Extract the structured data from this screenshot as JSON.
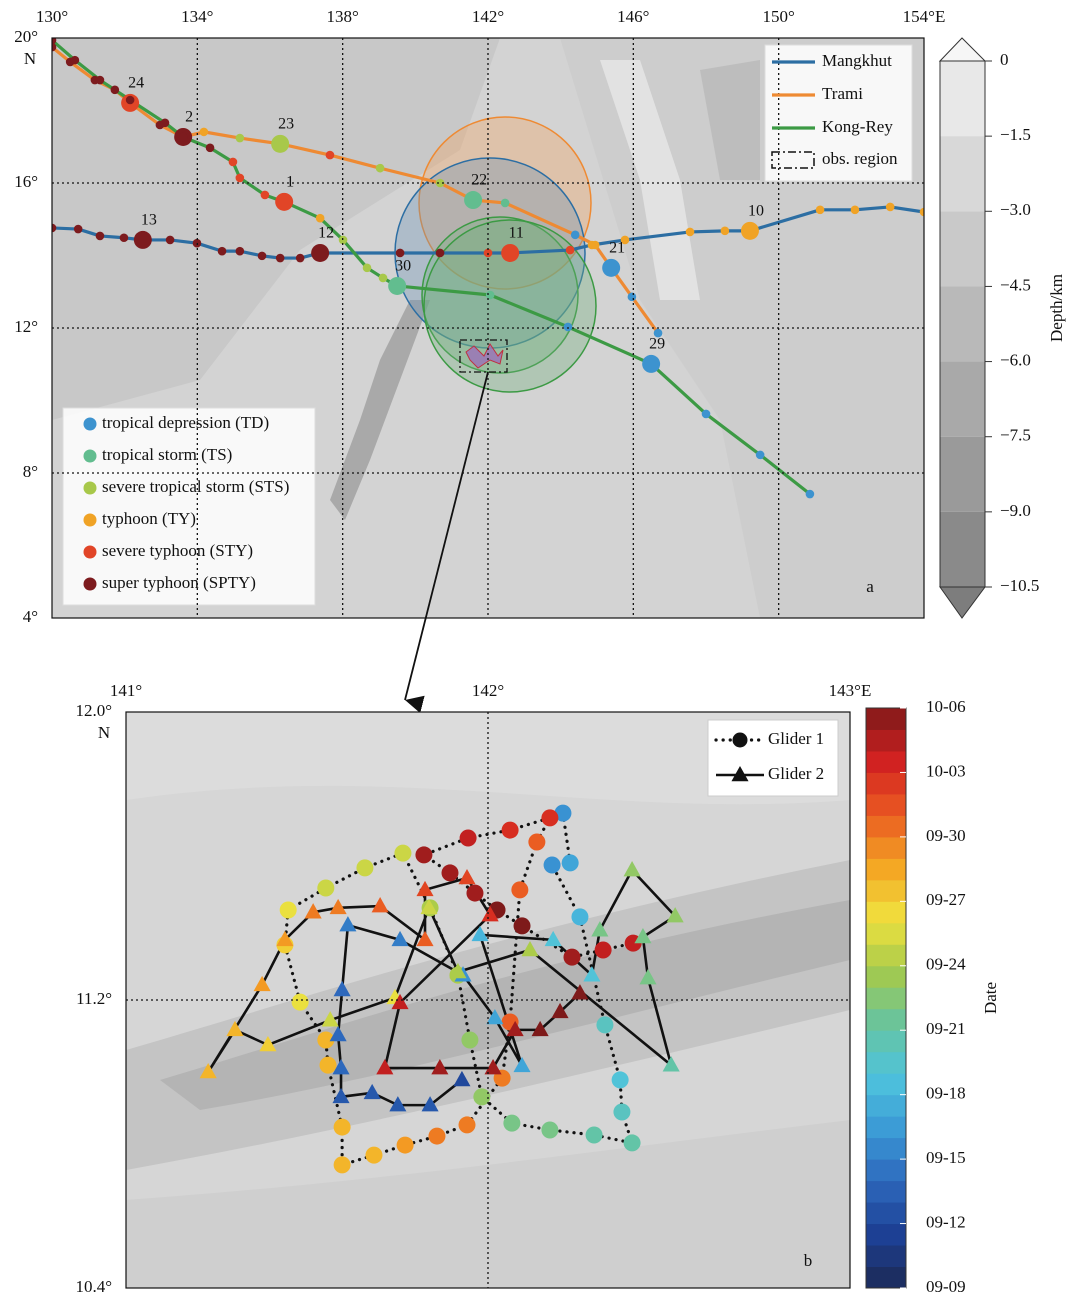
{
  "panel_a": {
    "label": "a",
    "xlim": [
      130,
      154
    ],
    "ylim": [
      4,
      20
    ],
    "xticks": [
      {
        "value": 130,
        "label": "130°"
      },
      {
        "value": 134,
        "label": "134°"
      },
      {
        "value": 138,
        "label": "138°"
      },
      {
        "value": 142,
        "label": "142°"
      },
      {
        "value": 146,
        "label": "146°"
      },
      {
        "value": 150,
        "label": "150°"
      },
      {
        "value": 154,
        "label": "154°E"
      }
    ],
    "yticks": [
      {
        "value": 20,
        "label": "20°"
      },
      {
        "value": 16,
        "label": "16°"
      },
      {
        "value": 12,
        "label": "12°"
      },
      {
        "value": 8,
        "label": "8°"
      },
      {
        "value": 4,
        "label": "4°"
      }
    ],
    "hemisphere": "N",
    "grid": true,
    "categories": [
      {
        "name": "tropical depression (TD)",
        "color": "#3d93cf"
      },
      {
        "name": "tropical storm (TS)",
        "color": "#62bd8f"
      },
      {
        "name": "severe tropical storm (STS)",
        "color": "#a8c84a"
      },
      {
        "name": "typhoon (TY)",
        "color": "#f0a326"
      },
      {
        "name": "severe typhoon (STY)",
        "color": "#e14527"
      },
      {
        "name": "super typhoon (SPTY)",
        "color": "#7d1b1e"
      }
    ],
    "tracks": [
      {
        "name": "Mangkhut",
        "color": "#2c6ea3",
        "points": [
          [
            154.0,
            15.2,
            3
          ],
          [
            153.07,
            15.34,
            3
          ],
          [
            152.1,
            15.26,
            3
          ],
          [
            151.14,
            15.26,
            3
          ],
          [
            149.21,
            14.68,
            3,
            "10"
          ],
          [
            148.52,
            14.68,
            3
          ],
          [
            147.56,
            14.65,
            3
          ],
          [
            145.77,
            14.43,
            3
          ],
          [
            144.86,
            14.29,
            3
          ],
          [
            144.26,
            14.15,
            4
          ],
          [
            142.61,
            14.07,
            4,
            "11"
          ],
          [
            142.0,
            14.07,
            4
          ],
          [
            140.68,
            14.07,
            5
          ],
          [
            139.58,
            14.07,
            5
          ],
          [
            137.38,
            14.07,
            5,
            "12"
          ],
          [
            136.83,
            13.93,
            5
          ],
          [
            136.28,
            13.93,
            5
          ],
          [
            135.78,
            13.99,
            5
          ],
          [
            135.17,
            14.12,
            5
          ],
          [
            134.68,
            14.12,
            5
          ],
          [
            133.99,
            14.34,
            5
          ],
          [
            133.25,
            14.43,
            5
          ],
          [
            132.5,
            14.43,
            5,
            "13"
          ],
          [
            131.98,
            14.49,
            5
          ],
          [
            131.32,
            14.54,
            5
          ],
          [
            130.72,
            14.73,
            5
          ],
          [
            130.0,
            14.76,
            5
          ]
        ]
      },
      {
        "name": "Trami",
        "color": "#ee8a33",
        "points": [
          [
            146.68,
            11.86,
            0
          ],
          [
            145.96,
            12.86,
            0
          ],
          [
            145.39,
            13.66,
            0,
            "21"
          ],
          [
            144.95,
            14.29,
            3
          ],
          [
            144.4,
            14.57,
            0
          ],
          [
            142.47,
            15.45,
            1
          ],
          [
            141.59,
            15.53,
            1,
            "22"
          ],
          [
            140.68,
            16.0,
            2
          ],
          [
            139.03,
            16.41,
            2
          ],
          [
            137.65,
            16.77,
            4
          ],
          [
            136.28,
            17.08,
            2,
            "23"
          ],
          [
            135.17,
            17.24,
            2
          ],
          [
            134.18,
            17.41,
            3
          ],
          [
            133.61,
            17.27,
            5,
            "2"
          ],
          [
            132.97,
            17.6,
            5
          ],
          [
            132.15,
            18.21,
            4,
            "24"
          ],
          [
            131.73,
            18.57,
            5
          ],
          [
            131.18,
            18.84,
            5
          ],
          [
            130.5,
            19.34,
            5
          ],
          [
            130.0,
            19.75,
            5
          ]
        ]
      },
      {
        "name": "Kong-Rey",
        "color": "#3c9a44",
        "points": [
          [
            150.86,
            7.42,
            0
          ],
          [
            149.49,
            8.5,
            0
          ],
          [
            148.0,
            9.63,
            0
          ],
          [
            146.49,
            11.01,
            0,
            "29"
          ],
          [
            144.2,
            12.03,
            0
          ],
          [
            142.06,
            12.91,
            1
          ],
          [
            139.5,
            13.16,
            1,
            "30"
          ],
          [
            139.11,
            13.38,
            2
          ],
          [
            138.67,
            13.66,
            2
          ],
          [
            138.01,
            14.43,
            2
          ],
          [
            137.38,
            15.03,
            3
          ],
          [
            136.39,
            15.48,
            4,
            "1"
          ],
          [
            135.86,
            15.67,
            4
          ],
          [
            135.17,
            16.14,
            4
          ],
          [
            134.98,
            16.58,
            4
          ],
          [
            134.35,
            16.97,
            5
          ],
          [
            133.61,
            17.27,
            5
          ],
          [
            133.11,
            17.66,
            5
          ],
          [
            132.15,
            18.29,
            5
          ],
          [
            131.32,
            18.84,
            5
          ],
          [
            130.63,
            19.39,
            5
          ],
          [
            130.0,
            19.94,
            5
          ]
        ]
      }
    ],
    "region_label": "obs. region",
    "colorbar": {
      "label": "Depth/km",
      "lim": [
        -10.5,
        0
      ],
      "ticks": [
        0,
        {
          "value": -1.5,
          "label": "−1.5"
        },
        {
          "value": -3.0,
          "label": "−3.0"
        },
        {
          "value": -4.5,
          "label": "−4.5"
        },
        {
          "value": -6.0,
          "label": "−6.0"
        },
        {
          "value": -7.5,
          "label": "−7.5"
        },
        {
          "value": -9.0,
          "label": "−9.0"
        },
        {
          "value": -10.5,
          "label": "−10.5"
        }
      ]
    }
  },
  "panel_b": {
    "label": "b",
    "xlim": [
      141,
      143
    ],
    "ylim": [
      10.4,
      12.0
    ],
    "xticks": [
      {
        "value": 141,
        "label": "141°"
      },
      {
        "value": 142,
        "label": "142°"
      },
      {
        "value": 143,
        "label": "143°E"
      }
    ],
    "yticks": [
      {
        "value": 12.0,
        "label": "12.0°"
      },
      {
        "value": 11.2,
        "label": "11.2°"
      },
      {
        "value": 10.4,
        "label": "10.4°"
      }
    ],
    "hemisphere": "N",
    "grid": true,
    "colorbar": {
      "label": "Date",
      "lim": [
        9,
        36
      ],
      "colormap": [
        "#1c2a55",
        "#1d3f93",
        "#2c66bb",
        "#3b9ad6",
        "#4fc3dd",
        "#66c4a0",
        "#a4c94c",
        "#f0e23e",
        "#f4a523",
        "#ea5a22",
        "#d12121",
        "#7e1a1a"
      ],
      "ticks": [
        {
          "value": 36,
          "label": "10-06"
        },
        {
          "value": 33,
          "label": "10-03"
        },
        {
          "value": 30,
          "label": "09-30"
        },
        {
          "value": 27,
          "label": "09-27"
        },
        {
          "value": 24,
          "label": "09-24"
        },
        {
          "value": 21,
          "label": "09-21"
        },
        {
          "value": 18,
          "label": "09-18"
        },
        {
          "value": 15,
          "label": "09-15"
        },
        {
          "value": 12,
          "label": "09-12"
        },
        {
          "value": 9,
          "label": "09-09"
        }
      ]
    },
    "gliders": [
      {
        "name": "Glider 1",
        "marker": "circle",
        "line": "dotted",
        "points": [
          [
            142.207,
            11.719,
            16
          ],
          [
            142.227,
            11.581,
            17
          ],
          [
            142.177,
            11.575,
            16
          ],
          [
            142.254,
            11.431,
            18
          ],
          [
            142.323,
            11.131,
            20
          ],
          [
            142.365,
            10.978,
            19
          ],
          [
            142.37,
            10.889,
            20
          ],
          [
            142.398,
            10.803,
            21
          ],
          [
            142.293,
            10.825,
            21
          ],
          [
            142.171,
            10.839,
            22
          ],
          [
            142.066,
            10.858,
            22
          ],
          [
            141.983,
            10.931,
            23
          ],
          [
            141.95,
            11.089,
            23
          ],
          [
            141.917,
            11.269,
            24
          ],
          [
            141.84,
            11.456,
            24
          ],
          [
            141.765,
            11.608,
            25
          ],
          [
            141.66,
            11.567,
            25
          ],
          [
            141.552,
            11.511,
            25
          ],
          [
            141.448,
            11.45,
            26
          ],
          [
            141.439,
            11.353,
            27
          ],
          [
            141.481,
            11.194,
            26
          ],
          [
            141.552,
            11.089,
            28
          ],
          [
            141.558,
            11.019,
            28
          ],
          [
            141.597,
            10.847,
            28
          ],
          [
            141.597,
            10.742,
            28
          ],
          [
            141.685,
            10.769,
            28
          ],
          [
            141.771,
            10.797,
            29
          ],
          [
            141.859,
            10.822,
            30
          ],
          [
            141.942,
            10.853,
            30
          ],
          [
            142.039,
            10.983,
            30
          ],
          [
            142.061,
            11.139,
            31
          ],
          [
            142.088,
            11.506,
            31
          ],
          [
            142.135,
            11.639,
            31
          ],
          [
            142.171,
            11.706,
            33
          ],
          [
            142.061,
            11.672,
            33
          ],
          [
            141.945,
            11.65,
            34
          ],
          [
            141.823,
            11.603,
            35
          ],
          [
            141.895,
            11.553,
            35
          ],
          [
            141.964,
            11.497,
            35
          ],
          [
            142.025,
            11.45,
            36
          ],
          [
            142.094,
            11.406,
            36
          ],
          [
            142.232,
            11.319,
            35
          ],
          [
            142.318,
            11.339,
            34
          ],
          [
            142.401,
            11.358,
            34
          ]
        ]
      },
      {
        "name": "Glider 2",
        "marker": "triangle",
        "line": "solid",
        "points": [
          [
            141.928,
            10.978,
            12
          ],
          [
            141.84,
            10.908,
            13
          ],
          [
            141.751,
            10.908,
            13
          ],
          [
            141.68,
            10.942,
            13
          ],
          [
            141.594,
            10.931,
            13
          ],
          [
            141.594,
            11.011,
            14
          ],
          [
            141.586,
            11.103,
            14
          ],
          [
            141.597,
            11.228,
            14
          ],
          [
            141.613,
            11.408,
            15
          ],
          [
            141.757,
            11.367,
            15
          ],
          [
            141.931,
            11.269,
            16
          ],
          [
            142.019,
            11.15,
            17
          ],
          [
            142.094,
            11.017,
            17
          ],
          [
            141.978,
            11.381,
            18
          ],
          [
            142.18,
            11.367,
            19
          ],
          [
            142.287,
            11.269,
            19
          ],
          [
            142.309,
            11.394,
            22
          ],
          [
            142.398,
            11.561,
            23
          ],
          [
            142.517,
            11.433,
            23
          ],
          [
            142.428,
            11.375,
            22
          ],
          [
            142.442,
            11.261,
            22
          ],
          [
            142.506,
            11.019,
            21
          ],
          [
            142.116,
            11.339,
            24
          ],
          [
            141.917,
            11.278,
            24
          ],
          [
            141.837,
            11.456,
            25
          ],
          [
            141.743,
            11.206,
            26
          ],
          [
            141.564,
            11.144,
            25
          ],
          [
            141.392,
            11.075,
            27
          ],
          [
            141.301,
            11.117,
            28
          ],
          [
            141.227,
            11.0,
            28
          ],
          [
            141.376,
            11.242,
            29
          ],
          [
            141.439,
            11.367,
            29
          ],
          [
            141.517,
            11.444,
            30
          ],
          [
            141.586,
            11.456,
            30
          ],
          [
            141.702,
            11.461,
            31
          ],
          [
            141.826,
            11.367,
            31
          ],
          [
            141.826,
            11.506,
            32
          ],
          [
            141.942,
            11.539,
            32
          ],
          [
            142.006,
            11.436,
            33
          ],
          [
            141.757,
            11.192,
            34
          ],
          [
            141.715,
            11.011,
            34
          ],
          [
            141.867,
            11.011,
            35
          ],
          [
            142.014,
            11.011,
            35
          ],
          [
            142.075,
            11.117,
            35
          ],
          [
            142.144,
            11.117,
            36
          ],
          [
            142.199,
            11.167,
            36
          ],
          [
            142.254,
            11.219,
            36
          ]
        ]
      }
    ]
  }
}
